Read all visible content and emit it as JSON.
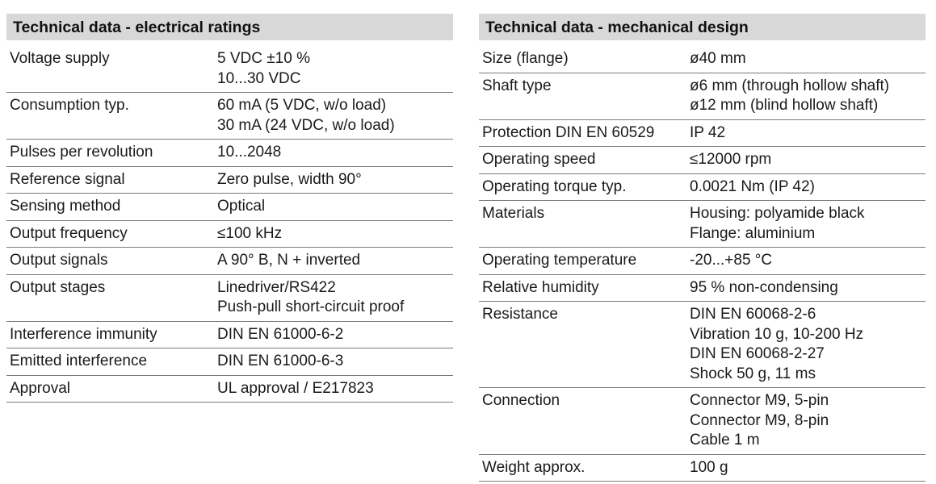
{
  "electrical": {
    "title": "Technical data - electrical ratings",
    "rows": [
      {
        "label": "Voltage supply",
        "values": [
          "5 VDC ±10 %",
          "10...30 VDC"
        ]
      },
      {
        "label": "Consumption typ.",
        "values": [
          "60 mA (5 VDC, w/o load)",
          "30 mA (24 VDC, w/o load)"
        ]
      },
      {
        "label": "Pulses per revolution",
        "values": [
          "10...2048"
        ]
      },
      {
        "label": "Reference signal",
        "values": [
          "Zero pulse, width 90°"
        ]
      },
      {
        "label": "Sensing method",
        "values": [
          "Optical"
        ]
      },
      {
        "label": "Output frequency",
        "values": [
          "≤100 kHz"
        ]
      },
      {
        "label": "Output signals",
        "values": [
          "A 90° B, N + inverted"
        ]
      },
      {
        "label": "Output stages",
        "values": [
          "Linedriver/RS422",
          "Push-pull short-circuit proof"
        ]
      },
      {
        "label": "Interference immunity",
        "values": [
          "DIN EN 61000-6-2"
        ]
      },
      {
        "label": "Emitted interference",
        "values": [
          "DIN EN 61000-6-3"
        ]
      },
      {
        "label": "Approval",
        "values": [
          "UL approval / E217823"
        ]
      }
    ]
  },
  "mechanical": {
    "title": "Technical data - mechanical design",
    "rows": [
      {
        "label": "Size (flange)",
        "values": [
          "ø40 mm"
        ]
      },
      {
        "label": "Shaft type",
        "values": [
          "ø6 mm (through hollow shaft)",
          "ø12 mm (blind hollow shaft)"
        ]
      },
      {
        "label": "Protection DIN EN 60529",
        "values": [
          "IP 42"
        ]
      },
      {
        "label": "Operating speed",
        "values": [
          "≤12000 rpm"
        ]
      },
      {
        "label": "Operating torque typ.",
        "values": [
          "0.0021 Nm (IP 42)"
        ]
      },
      {
        "label": "Materials",
        "values": [
          "Housing: polyamide black",
          "Flange: aluminium"
        ]
      },
      {
        "label": "Operating temperature",
        "values": [
          "-20...+85 °C"
        ]
      },
      {
        "label": "Relative humidity",
        "values": [
          "95 % non-condensing"
        ]
      },
      {
        "label": "Resistance",
        "values": [
          "DIN EN 60068-2-6",
          "Vibration 10 g, 10-200 Hz",
          "DIN EN 60068-2-27",
          "Shock 50 g, 11 ms"
        ]
      },
      {
        "label": "Connection",
        "values": [
          "Connector M9, 5-pin",
          "Connector M9, 8-pin",
          "Cable 1 m"
        ]
      },
      {
        "label": "Weight approx.",
        "values": [
          "100 g"
        ]
      }
    ]
  }
}
